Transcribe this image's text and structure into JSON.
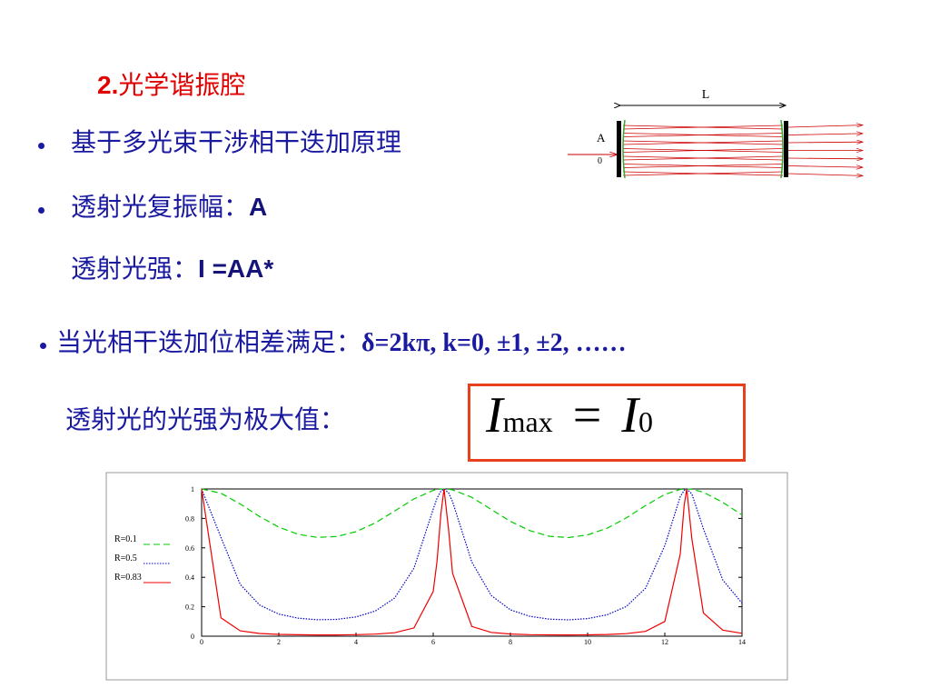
{
  "heading": {
    "number": "2.",
    "text": "光学谐振腔"
  },
  "bullets": [
    {
      "text": "基于多光束干涉相干迭加原理"
    },
    {
      "text": "透射光复振幅：",
      "symbol": "A"
    },
    {
      "text": "透射光强：",
      "symbol": "I =AA*"
    },
    {
      "text": "当光相干迭加位相差满足：",
      "condition": "δ=2kπ, k=0, ±1, ±2, ……"
    },
    {
      "text": "透射光的光强为极大值："
    }
  ],
  "formula": {
    "lhs": "I",
    "lhs_sub": "max",
    "rel": "=",
    "rhs": "I",
    "rhs_sub": "0"
  },
  "diagram": {
    "length_label": "L",
    "amplitude_label": "A",
    "amplitude_sub": "0"
  },
  "chart_data": {
    "type": "line",
    "x": [
      0,
      0.5,
      1,
      1.5,
      2,
      2.5,
      3,
      3.5,
      4,
      4.5,
      5,
      5.5,
      6,
      6.1,
      6.2,
      6.28,
      6.4,
      6.5,
      7,
      7.5,
      8,
      8.5,
      9,
      9.5,
      10,
      10.5,
      11,
      11.5,
      12,
      12.4,
      12.5,
      12.57,
      12.7,
      13,
      13.5,
      14
    ],
    "series": [
      {
        "name": "R=0.1",
        "color": "#00cc00",
        "line_style": "dashed",
        "values": [
          1,
          0.971,
          0.898,
          0.813,
          0.741,
          0.692,
          0.671,
          0.677,
          0.71,
          0.77,
          0.85,
          0.933,
          0.99,
          0.996,
          0.999,
          1,
          0.998,
          0.994,
          0.943,
          0.861,
          0.78,
          0.717,
          0.679,
          0.67,
          0.688,
          0.733,
          0.803,
          0.887,
          0.963,
          0.997,
          0.999,
          1,
          0.998,
          0.978,
          0.909,
          0.824
        ]
      },
      {
        "name": "R=0.5",
        "color": "#0000cc",
        "line_style": "dotted",
        "values": [
          1,
          0.671,
          0.352,
          0.212,
          0.15,
          0.122,
          0.112,
          0.114,
          0.131,
          0.171,
          0.259,
          0.462,
          0.863,
          0.937,
          0.986,
          1,
          0.973,
          0.914,
          0.504,
          0.277,
          0.179,
          0.135,
          0.116,
          0.111,
          0.12,
          0.145,
          0.201,
          0.326,
          0.615,
          0.948,
          0.991,
          1,
          0.966,
          0.73,
          0.382,
          0.225
        ]
      },
      {
        "name": "R=0.83",
        "color": "#ee0000",
        "line_style": "solid",
        "values": [
          1,
          0.125,
          0.0365,
          0.0184,
          0.0121,
          0.0096,
          0.0087,
          0.0089,
          0.0104,
          0.0142,
          0.0237,
          0.0564,
          0.304,
          0.51,
          0.834,
          1,
          0.719,
          0.427,
          0.066,
          0.026,
          0.015,
          0.0107,
          0.009,
          0.0086,
          0.0094,
          0.0117,
          0.0172,
          0.0326,
          0.1,
          0.557,
          0.888,
          1,
          0.661,
          0.158,
          0.0412,
          0.0198
        ]
      }
    ],
    "xlim": [
      0,
      14
    ],
    "xticks": [
      0,
      2,
      4,
      6,
      8,
      10,
      12,
      14
    ],
    "ylim": [
      0,
      1
    ],
    "yticks": [
      0,
      0.2,
      0.4,
      0.6,
      0.8,
      1
    ],
    "legend": "left"
  }
}
